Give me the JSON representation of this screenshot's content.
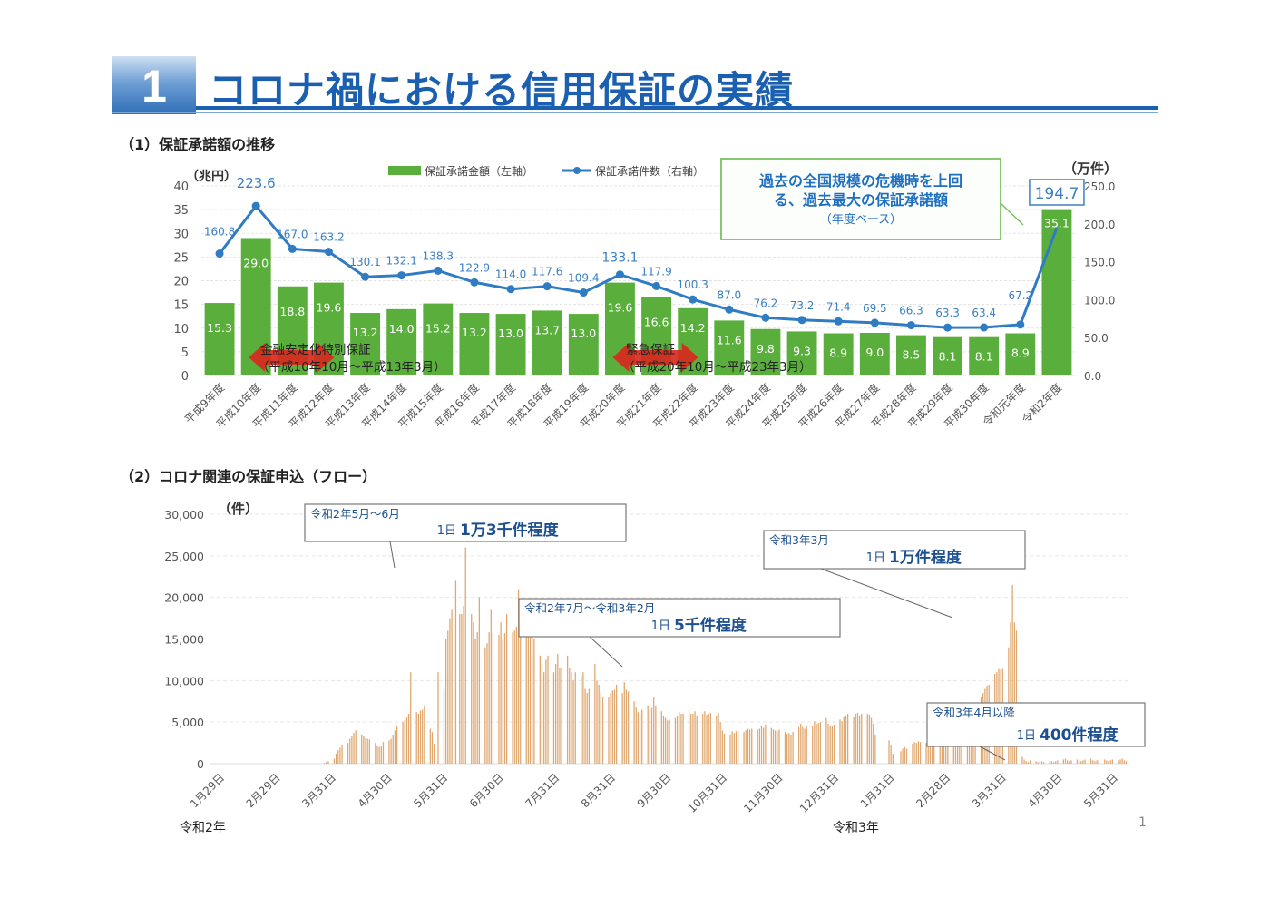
{
  "page": {
    "section_number": "1",
    "title": "コロナ禍における信用保証の実績",
    "page_number": "1",
    "colors": {
      "title_blue": "#1b5fb0",
      "bar_green": "#5aaf3c",
      "line_blue": "#2f7bc4",
      "flow_orange": "#e0a870",
      "arrow_red": "#d9261c"
    }
  },
  "section1": {
    "heading": "（1）保証承諾額の推移"
  },
  "section2": {
    "heading": "（2）コロナ関連の保証申込（フロー）"
  },
  "chart_data": [
    {
      "type": "bar",
      "title": "保証承諾額の推移",
      "categories": [
        "平成9年度",
        "平成10年度",
        "平成11年度",
        "平成12年度",
        "平成13年度",
        "平成14年度",
        "平成15年度",
        "平成16年度",
        "平成17年度",
        "平成18年度",
        "平成19年度",
        "平成20年度",
        "平成21年度",
        "平成22年度",
        "平成23年度",
        "平成24年度",
        "平成25年度",
        "平成26年度",
        "平成27年度",
        "平成28年度",
        "平成29年度",
        "平成30年度",
        "令和元年度",
        "令和2年度"
      ],
      "series": [
        {
          "name": "保証承諾金額（左軸）",
          "type": "bar",
          "axis": "left",
          "values": [
            15.3,
            29.0,
            18.8,
            19.6,
            13.2,
            14.0,
            15.2,
            13.2,
            13.0,
            13.7,
            13.0,
            19.6,
            16.6,
            14.2,
            11.6,
            9.8,
            9.3,
            8.9,
            9.0,
            8.5,
            8.1,
            8.1,
            8.9,
            35.1
          ]
        },
        {
          "name": "保証承諾件数（右軸）",
          "type": "line",
          "axis": "right",
          "values": [
            160.8,
            223.6,
            167.0,
            163.2,
            130.1,
            132.1,
            138.3,
            122.9,
            114.0,
            117.6,
            109.4,
            133.1,
            117.9,
            100.3,
            87.0,
            76.2,
            73.2,
            71.4,
            69.5,
            66.3,
            63.3,
            63.4,
            67.2,
            194.7
          ]
        }
      ],
      "ylabel_left": "（兆円）",
      "ylabel_right": "（万件）",
      "ylim_left": [
        0,
        40
      ],
      "yticks_left": [
        "0",
        "5",
        "10",
        "15",
        "20",
        "25",
        "30",
        "35",
        "40"
      ],
      "ylim_right": [
        0,
        250
      ],
      "yticks_right": [
        "0.0",
        "50.0",
        "100.0",
        "150.0",
        "200.0",
        "250.0"
      ],
      "legend": {
        "placement": "top-center",
        "bar_label": "保証承諾金額（左軸）",
        "line_label": "保証承諾件数（右軸）"
      },
      "grid": true,
      "annotations": {
        "callout_lines": [
          "過去の全国規模の危機時を上回",
          "る、過去最大の保証承諾額",
          "（年度ベース）"
        ],
        "highlight_value": "194.7",
        "periods": [
          {
            "name": "金融安定化特別保証",
            "range": "（平成10年10月～平成13年3月）",
            "from_category": 1,
            "to_category": 3
          },
          {
            "name": "緊急保証",
            "range": "（平成20年10月～平成23年3月）",
            "from_category": 11,
            "to_category": 13
          }
        ]
      }
    },
    {
      "type": "bar",
      "title": "コロナ関連の保証申込（フロー）",
      "ylabel": "（件）",
      "ylim": [
        0,
        30000
      ],
      "yticks": [
        "0",
        "5,000",
        "10,000",
        "15,000",
        "20,000",
        "25,000",
        "30,000"
      ],
      "x_tick_labels": [
        "1月29日",
        "2月29日",
        "3月31日",
        "4月30日",
        "5月31日",
        "6月30日",
        "7月31日",
        "8月31日",
        "9月30日",
        "10月31日",
        "11月30日",
        "12月31日",
        "1月31日",
        "2月28日",
        "3月31日",
        "4月30日",
        "5月31日"
      ],
      "year_labels": [
        {
          "label": "令和2年",
          "at_tick": 0
        },
        {
          "label": "令和3年",
          "at_tick": 12
        }
      ],
      "grid": true,
      "note": "daily values estimated from gridlines (approximate)",
      "daily_values_approx": [
        0,
        0,
        0,
        0,
        0,
        0,
        0,
        0,
        0,
        0,
        0,
        0,
        0,
        0,
        0,
        0,
        0,
        0,
        0,
        0,
        0,
        0,
        0,
        0,
        0,
        0,
        0,
        0,
        0,
        0,
        0,
        100,
        200,
        300,
        0,
        0,
        600,
        1200,
        1600,
        1900,
        2300,
        0,
        0,
        2500,
        3000,
        3300,
        3700,
        4000,
        0,
        0,
        3500,
        3300,
        3100,
        3000,
        2900,
        0,
        0,
        2500,
        2200,
        2000,
        2100,
        2600,
        0,
        0,
        2800,
        3000,
        3500,
        4000,
        4500,
        0,
        0,
        5000,
        5200,
        5600,
        6000,
        11000,
        0,
        0,
        6200,
        6000,
        6400,
        6500,
        7000,
        0,
        0,
        4200,
        3800,
        2400,
        0,
        11000,
        0,
        0,
        9000,
        15000,
        16000,
        17500,
        18500,
        0,
        22000,
        0,
        18000,
        18000,
        19000,
        26000,
        0,
        0,
        18000,
        17000,
        15000,
        15800,
        20000,
        0,
        0,
        14000,
        14500,
        15800,
        18500,
        15800,
        0,
        0,
        15500,
        17000,
        15000,
        15700,
        18000,
        0,
        0,
        15800,
        16000,
        16500,
        21000,
        15800,
        0,
        0,
        16500,
        16000,
        15800,
        15500,
        15000,
        0,
        0,
        13000,
        12000,
        11000,
        12500,
        13000,
        0,
        0,
        11000,
        12000,
        13200,
        11500,
        11600,
        0,
        0,
        13000,
        11500,
        11000,
        10000,
        11000,
        0,
        0,
        10600,
        11000,
        9000,
        8500,
        9000,
        0,
        0,
        12000,
        10000,
        9500,
        8600,
        8000,
        0,
        0,
        8000,
        8500,
        8800,
        8900,
        9500,
        0,
        0,
        8500,
        9800,
        8900,
        8700,
        0,
        0,
        7500,
        6800,
        6200,
        6000,
        6500,
        0,
        0,
        7000,
        6500,
        6700,
        8000,
        7000,
        0,
        0,
        6300,
        5800,
        5500,
        5200,
        5300,
        0,
        0,
        5500,
        5800,
        6200,
        6000,
        6000,
        0,
        0,
        6500,
        6000,
        6000,
        6300,
        5800,
        0,
        0,
        6000,
        6300,
        5900,
        6000,
        6100,
        0,
        0,
        5800,
        6100,
        5000,
        4000,
        3600,
        0,
        0,
        3500,
        3900,
        3700,
        3900,
        4000,
        0,
        0,
        3800,
        4000,
        4200,
        4100,
        4200,
        0,
        0,
        4100,
        4200,
        4500,
        4300,
        4700,
        0,
        0,
        4300,
        4100,
        4000,
        3900,
        4100,
        0,
        0,
        3800,
        3600,
        3700,
        3500,
        3800,
        0,
        0,
        4400,
        4800,
        4400,
        4200,
        4500,
        0,
        0,
        4500,
        5100,
        4800,
        4900,
        5000,
        0,
        0,
        5500,
        4800,
        4600,
        4500,
        4700,
        0,
        0,
        5300,
        5100,
        5700,
        5800,
        6000,
        0,
        0,
        5600,
        6000,
        6100,
        5800,
        6000,
        0,
        0,
        6000,
        5900,
        5500,
        4800,
        3500,
        0,
        0,
        0,
        0,
        0,
        0,
        2800,
        2300,
        1200,
        0,
        0,
        0,
        1500,
        1800,
        2000,
        1800,
        0,
        0,
        2400,
        2600,
        2500,
        2700,
        2600,
        0,
        0,
        2500,
        2800,
        2400,
        2300,
        2300,
        0,
        0,
        3400,
        4000,
        4600,
        4800,
        5500,
        0,
        0,
        5800,
        6200,
        6600,
        6800,
        7400,
        0,
        0,
        7200,
        7000,
        6900,
        6700,
        6900,
        0,
        0,
        8000,
        8500,
        9000,
        9400,
        9500,
        0,
        0,
        10800,
        11000,
        11400,
        11300,
        11400,
        0,
        0,
        14000,
        17000,
        21500,
        17000,
        16000,
        0,
        0,
        800,
        500,
        300,
        200,
        400,
        0,
        0,
        300,
        200,
        400,
        300,
        200,
        0,
        0,
        300,
        300,
        200,
        300,
        400,
        0,
        0,
        500,
        600,
        400,
        300,
        400,
        0,
        0,
        500,
        400,
        300,
        400,
        500,
        0,
        0,
        600,
        400,
        300,
        400,
        500,
        0,
        0,
        500,
        400,
        300,
        400,
        500,
        0,
        0,
        400,
        500,
        600,
        400,
        300
      ],
      "annotations": [
        {
          "period": "令和2年5月～6月",
          "prefix": "1日",
          "text": "1万3千件程度"
        },
        {
          "period": "令和2年7月～令和3年2月",
          "prefix": "1日",
          "text": "5千件程度"
        },
        {
          "period": "令和3年3月",
          "prefix": "1日",
          "text": "1万件程度"
        },
        {
          "period": "令和3年4月以降",
          "prefix": "1日",
          "text": "400件程度"
        }
      ]
    }
  ]
}
